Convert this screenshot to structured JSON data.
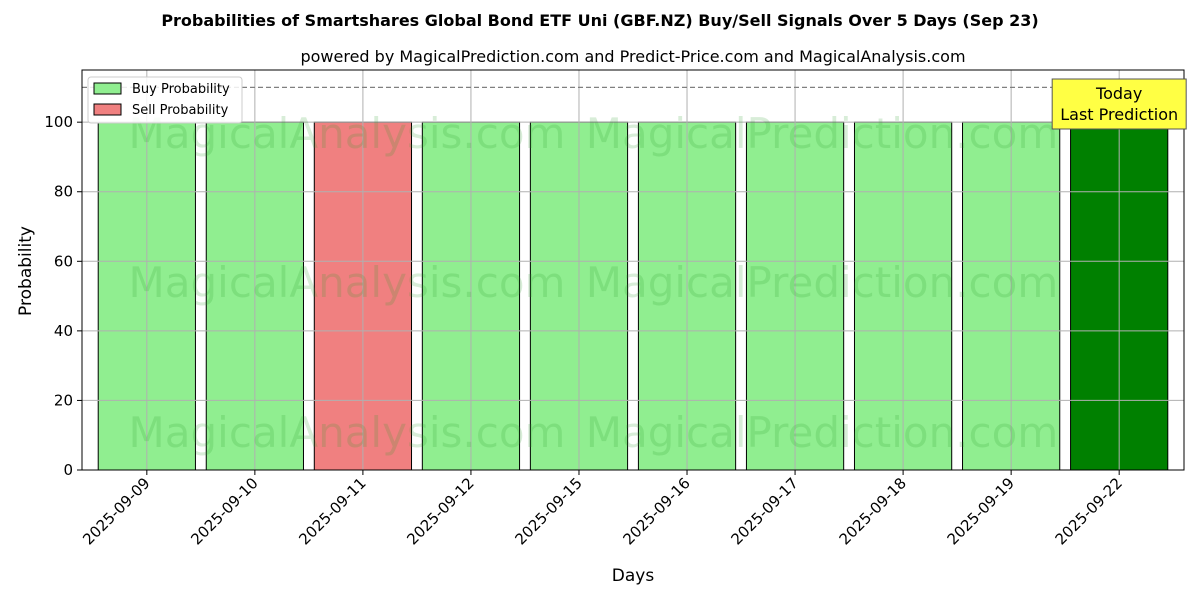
{
  "title": "Probabilities of Smartshares Global Bond ETF Uni (GBF.NZ) Buy/Sell Signals Over 5 Days (Sep 23)",
  "subtitle": "powered by MagicalPrediction.com and Predict-Price.com and MagicalAnalysis.com",
  "watermarks": [
    "MagicalAnalysis.com",
    "MagicalPrediction.com"
  ],
  "annotation": {
    "line1": "Today",
    "line2": "Last Prediction",
    "background": "#ffff44"
  },
  "colors": {
    "buy": "#90ee90",
    "sell": "#f08080",
    "today": "#008000"
  },
  "chart_data": {
    "type": "bar",
    "title": "Probabilities of Smartshares Global Bond ETF Uni (GBF.NZ) Buy/Sell Signals Over 5 Days (Sep 23)",
    "xlabel": "Days",
    "ylabel": "Probability",
    "ylim": [
      0,
      115
    ],
    "yticks": [
      0,
      20,
      40,
      60,
      80,
      100
    ],
    "reference_line": 110,
    "grid": true,
    "legend_position": "top-left",
    "categories": [
      "2025-09-09",
      "2025-09-10",
      "2025-09-11",
      "2025-09-12",
      "2025-09-15",
      "2025-09-16",
      "2025-09-17",
      "2025-09-18",
      "2025-09-19",
      "2025-09-22"
    ],
    "signals": [
      "buy",
      "buy",
      "sell",
      "buy",
      "buy",
      "buy",
      "buy",
      "buy",
      "buy",
      "buy"
    ],
    "values": [
      100,
      100,
      100,
      100,
      100,
      100,
      100,
      100,
      100,
      100
    ],
    "highlight_index": 9,
    "series": [
      {
        "name": "Buy Probability",
        "color": "#90ee90"
      },
      {
        "name": "Sell Probability",
        "color": "#f08080"
      }
    ]
  }
}
